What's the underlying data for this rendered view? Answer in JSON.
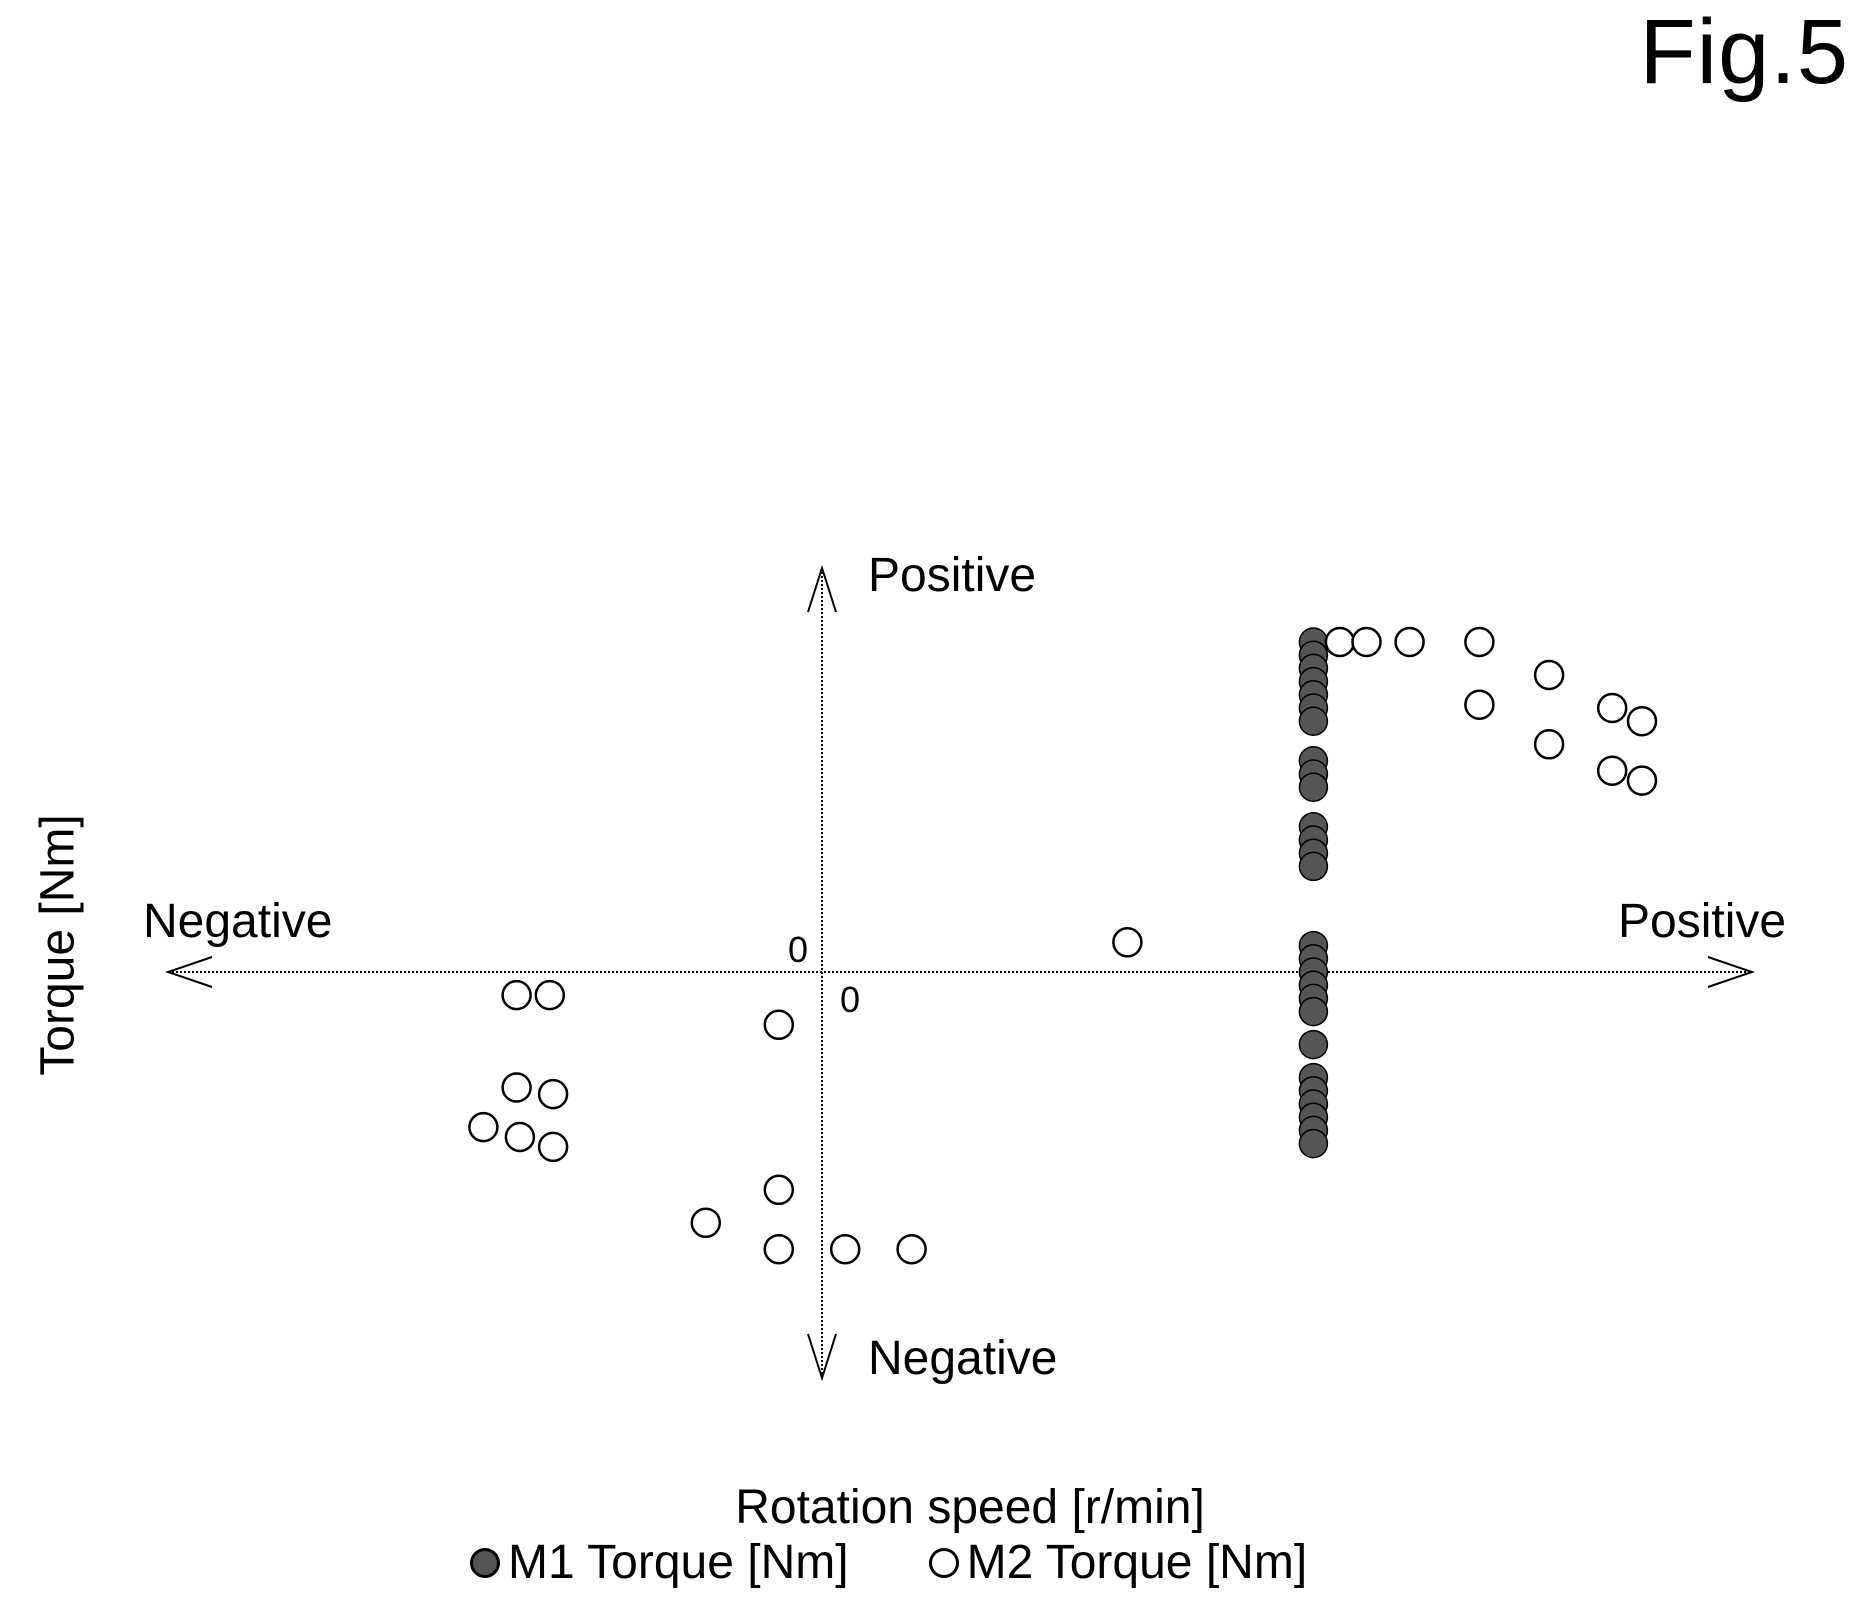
{
  "figure_label": "Fig.5",
  "chart_data": {
    "type": "scatter",
    "title": "",
    "xlabel": "Rotation speed [r/min]",
    "ylabel": "Torque [Nm]",
    "xlim": [
      -10,
      15
    ],
    "ylim": [
      -6.3,
      6.3
    ],
    "grid": false,
    "axis_ends": {
      "x_negative": "Negative",
      "x_positive": "Positive",
      "y_positive": "Positive",
      "y_negative": "Negative"
    },
    "origin_labels": [
      "0",
      "0"
    ],
    "legend": {
      "placement": "bottom"
    },
    "series": [
      {
        "name": "M1 Torque [Nm]",
        "marker": "filled-circle",
        "color": "#555555",
        "points": [
          {
            "x": 7.4,
            "y": 5.0
          },
          {
            "x": 7.4,
            "y": 4.8
          },
          {
            "x": 7.4,
            "y": 4.6
          },
          {
            "x": 7.4,
            "y": 4.4
          },
          {
            "x": 7.4,
            "y": 4.2
          },
          {
            "x": 7.4,
            "y": 4.0
          },
          {
            "x": 7.4,
            "y": 3.8
          },
          {
            "x": 7.4,
            "y": 3.2
          },
          {
            "x": 7.4,
            "y": 3.0
          },
          {
            "x": 7.4,
            "y": 2.8
          },
          {
            "x": 7.4,
            "y": 2.2
          },
          {
            "x": 7.4,
            "y": 2.0
          },
          {
            "x": 7.4,
            "y": 1.8
          },
          {
            "x": 7.4,
            "y": 1.6
          },
          {
            "x": 7.4,
            "y": 0.4
          },
          {
            "x": 7.4,
            "y": 0.2
          },
          {
            "x": 7.4,
            "y": 0.0
          },
          {
            "x": 7.4,
            "y": -0.2
          },
          {
            "x": 7.4,
            "y": -0.4
          },
          {
            "x": 7.4,
            "y": -0.6
          },
          {
            "x": 7.4,
            "y": -1.1
          },
          {
            "x": 7.4,
            "y": -1.6
          },
          {
            "x": 7.4,
            "y": -1.8
          },
          {
            "x": 7.4,
            "y": -2.0
          },
          {
            "x": 7.4,
            "y": -2.2
          },
          {
            "x": 7.4,
            "y": -2.4
          },
          {
            "x": 7.4,
            "y": -2.6
          }
        ]
      },
      {
        "name": "M2 Torque [Nm]",
        "marker": "open-circle",
        "color": "#000000",
        "points": [
          {
            "x": 7.8,
            "y": 5.0
          },
          {
            "x": 8.2,
            "y": 5.0
          },
          {
            "x": 8.85,
            "y": 5.0
          },
          {
            "x": 9.9,
            "y": 5.0
          },
          {
            "x": 10.95,
            "y": 4.5
          },
          {
            "x": 11.9,
            "y": 4.0
          },
          {
            "x": 12.35,
            "y": 3.8
          },
          {
            "x": 9.9,
            "y": 4.05
          },
          {
            "x": 10.95,
            "y": 3.45
          },
          {
            "x": 11.9,
            "y": 3.05
          },
          {
            "x": 12.35,
            "y": 2.9
          },
          {
            "x": 4.6,
            "y": 0.45
          },
          {
            "x": -4.6,
            "y": -0.35
          },
          {
            "x": -4.1,
            "y": -0.35
          },
          {
            "x": -0.65,
            "y": -0.8
          },
          {
            "x": -4.6,
            "y": -1.75
          },
          {
            "x": -4.05,
            "y": -1.85
          },
          {
            "x": -5.1,
            "y": -2.35
          },
          {
            "x": -4.55,
            "y": -2.5
          },
          {
            "x": -4.05,
            "y": -2.65
          },
          {
            "x": -0.65,
            "y": -3.3
          },
          {
            "x": -1.75,
            "y": -3.8
          },
          {
            "x": -0.65,
            "y": -4.2
          },
          {
            "x": 0.35,
            "y": -4.2
          },
          {
            "x": 1.35,
            "y": -4.2
          }
        ]
      }
    ]
  }
}
